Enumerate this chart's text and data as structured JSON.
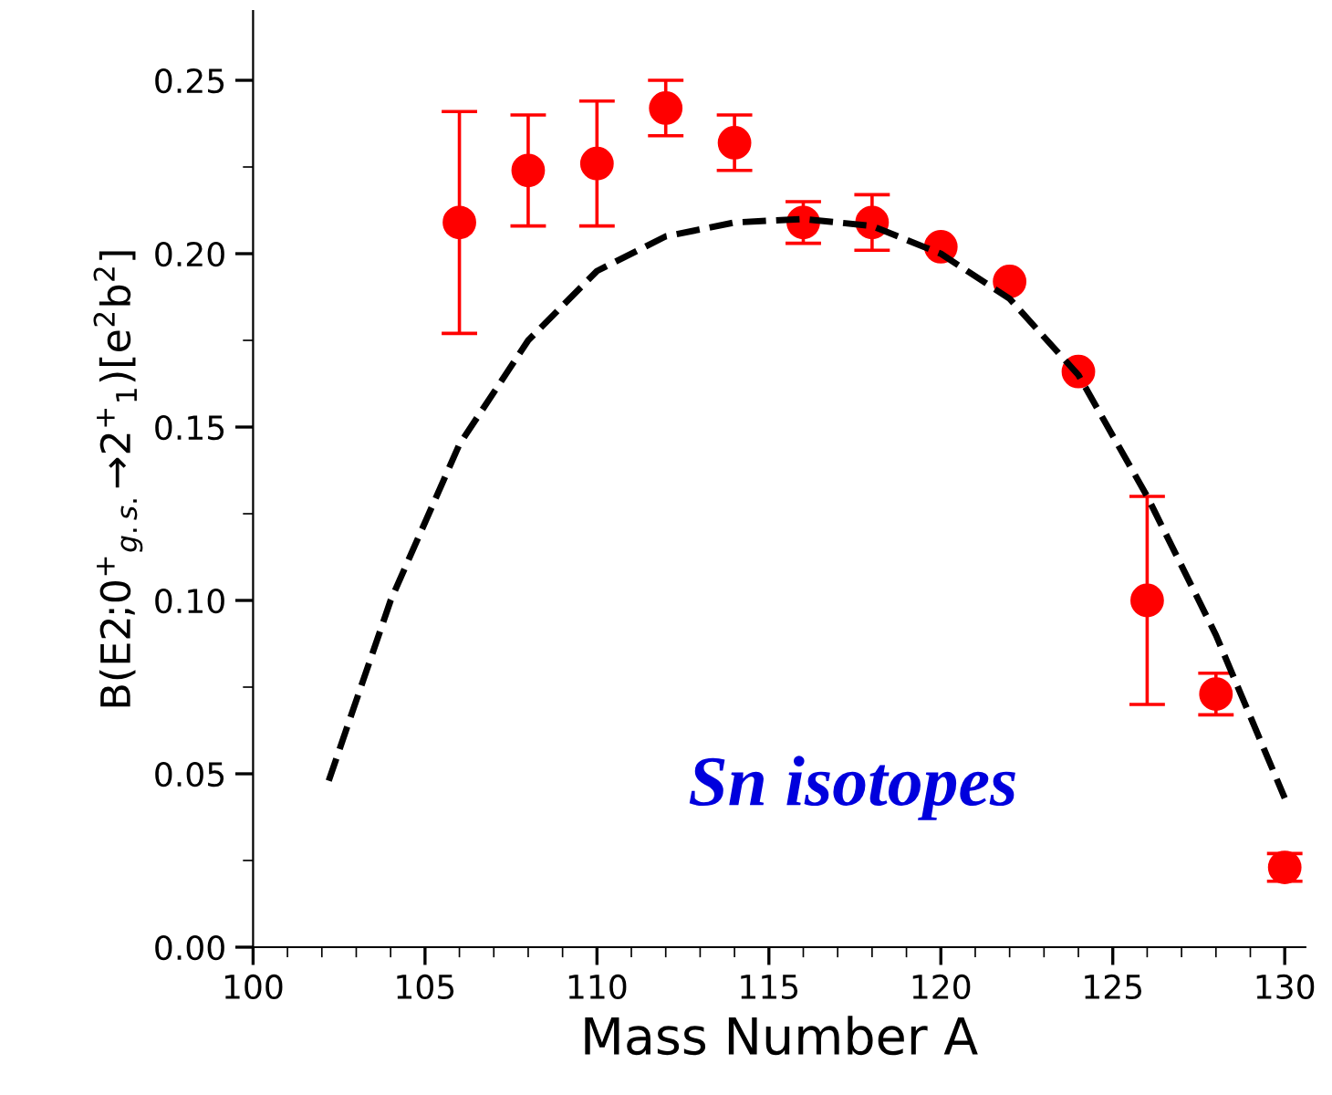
{
  "chart_data": {
    "type": "scatter",
    "xlabel": "Mass Number A",
    "ylabel": "B(E2;0$^{+}$$_{g.s.}$→2$^{+}$$_{1}$)[e$^{2}$b$^{2}$]",
    "xlim": [
      100,
      130.6
    ],
    "ylim": [
      0,
      0.27
    ],
    "xticks": [
      100,
      105,
      110,
      115,
      120,
      125,
      130
    ],
    "yticks": [
      {
        "value": 0,
        "label": "0.00"
      },
      0.05,
      {
        "value": 0.1,
        "label": "0.10"
      },
      0.15,
      {
        "value": 0.2,
        "label": "0.20"
      },
      0.25
    ],
    "grid": false,
    "legend": false,
    "annotations": [
      "Sn isotopes"
    ],
    "series": [
      {
        "color": "#ff0000",
        "marker": "circle",
        "x": [
          106,
          108,
          110,
          112,
          114,
          116,
          118,
          120,
          122,
          124,
          126,
          128,
          130
        ],
        "values": [
          0.209,
          0.224,
          0.226,
          0.242,
          0.232,
          0.209,
          0.209,
          0.202,
          0.192,
          0.166,
          0.1,
          0.073,
          0.023
        ],
        "errors": [
          [
            0.177,
            0.241
          ],
          [
            0.208,
            0.24
          ],
          [
            0.208,
            0.244
          ],
          [
            0.234,
            0.25
          ],
          [
            0.224,
            0.24
          ],
          [
            0.203,
            0.215
          ],
          [
            0.201,
            0.217
          ],
          null,
          null,
          null,
          [
            0.07,
            0.13
          ],
          [
            0.067,
            0.079
          ],
          [
            0.019,
            0.027
          ]
        ]
      },
      {
        "type": "line",
        "color": "#000000",
        "line_style": "dashed",
        "marker": "none",
        "x": [
          102.2,
          104,
          106,
          108,
          110,
          112,
          114,
          116,
          118,
          120,
          122,
          124,
          126,
          128,
          130
        ],
        "values": [
          0.048,
          0.1,
          0.145,
          0.175,
          0.195,
          0.205,
          0.209,
          0.21,
          0.208,
          0.2,
          0.187,
          0.165,
          0.13,
          0.09,
          0.043
        ]
      }
    ]
  }
}
